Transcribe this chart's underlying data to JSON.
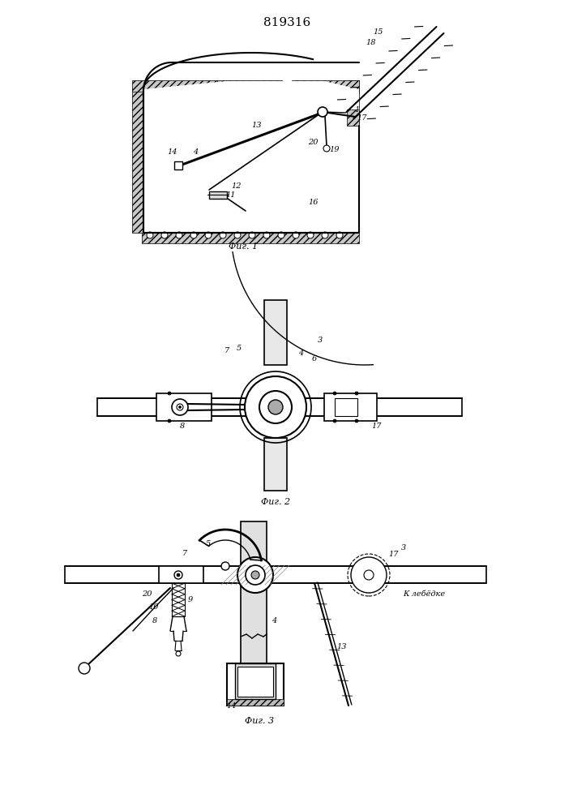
{
  "title": "819316",
  "fig1_caption": "Фиг. 1",
  "fig2_caption": "Фиг. 2",
  "fig3_caption": "Фиг. 3",
  "fig3_label": "К лебёдке",
  "bg_color": "#ffffff"
}
